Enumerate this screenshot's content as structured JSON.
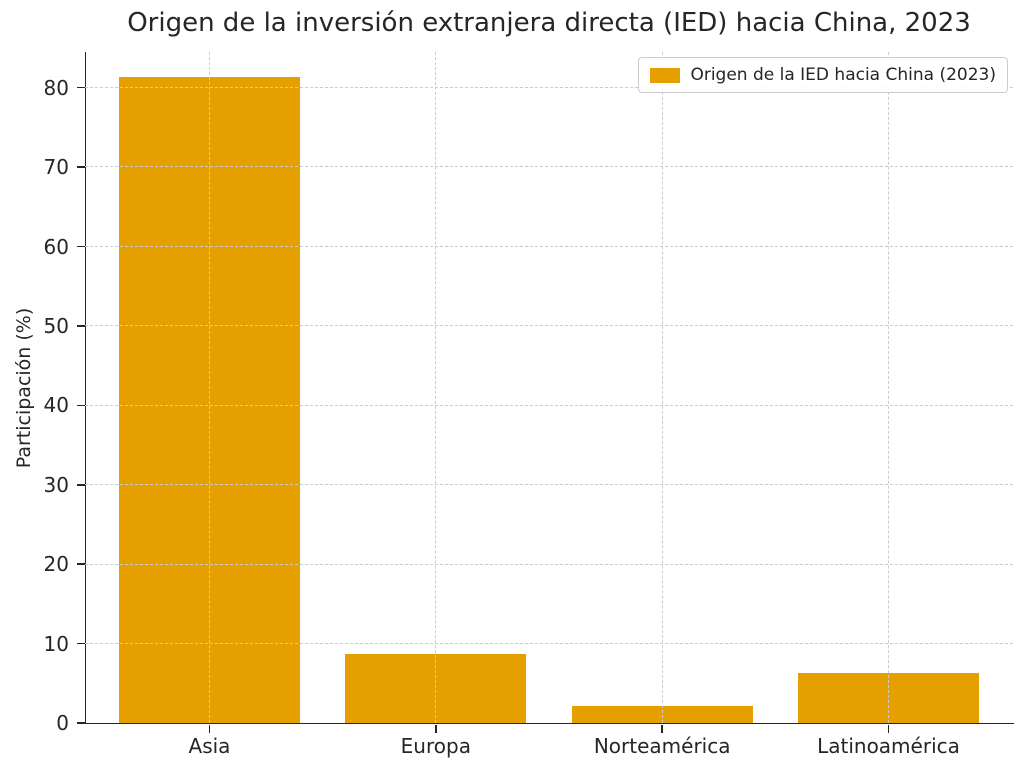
{
  "chart_data": {
    "type": "bar",
    "title": "Origen de la inversión extranjera directa (IED) hacia China, 2023",
    "categories": [
      "Asia",
      "Europa",
      "Norteamérica",
      "Latinoamérica"
    ],
    "values": [
      81.3,
      8.7,
      2.2,
      6.3
    ],
    "xlabel": "",
    "ylabel": "Participación (%)",
    "ylim": [
      0,
      84.5
    ],
    "yticks": [
      0,
      10,
      20,
      30,
      40,
      50,
      60,
      70,
      80
    ],
    "grid": true,
    "grid_style": "dashed",
    "grid_above_bars": true,
    "bar_width_ratio": 0.8,
    "legend": {
      "position": "upper right",
      "entries": [
        {
          "label": "Origen de la IED hacia China (2023)",
          "color": "#E69F00"
        }
      ]
    }
  },
  "colors": {
    "bar": "#E69F00",
    "grid": "#cccccc",
    "text": "#262626",
    "spine": "#262626",
    "legend_border": "#cccccc",
    "background": "#ffffff"
  }
}
